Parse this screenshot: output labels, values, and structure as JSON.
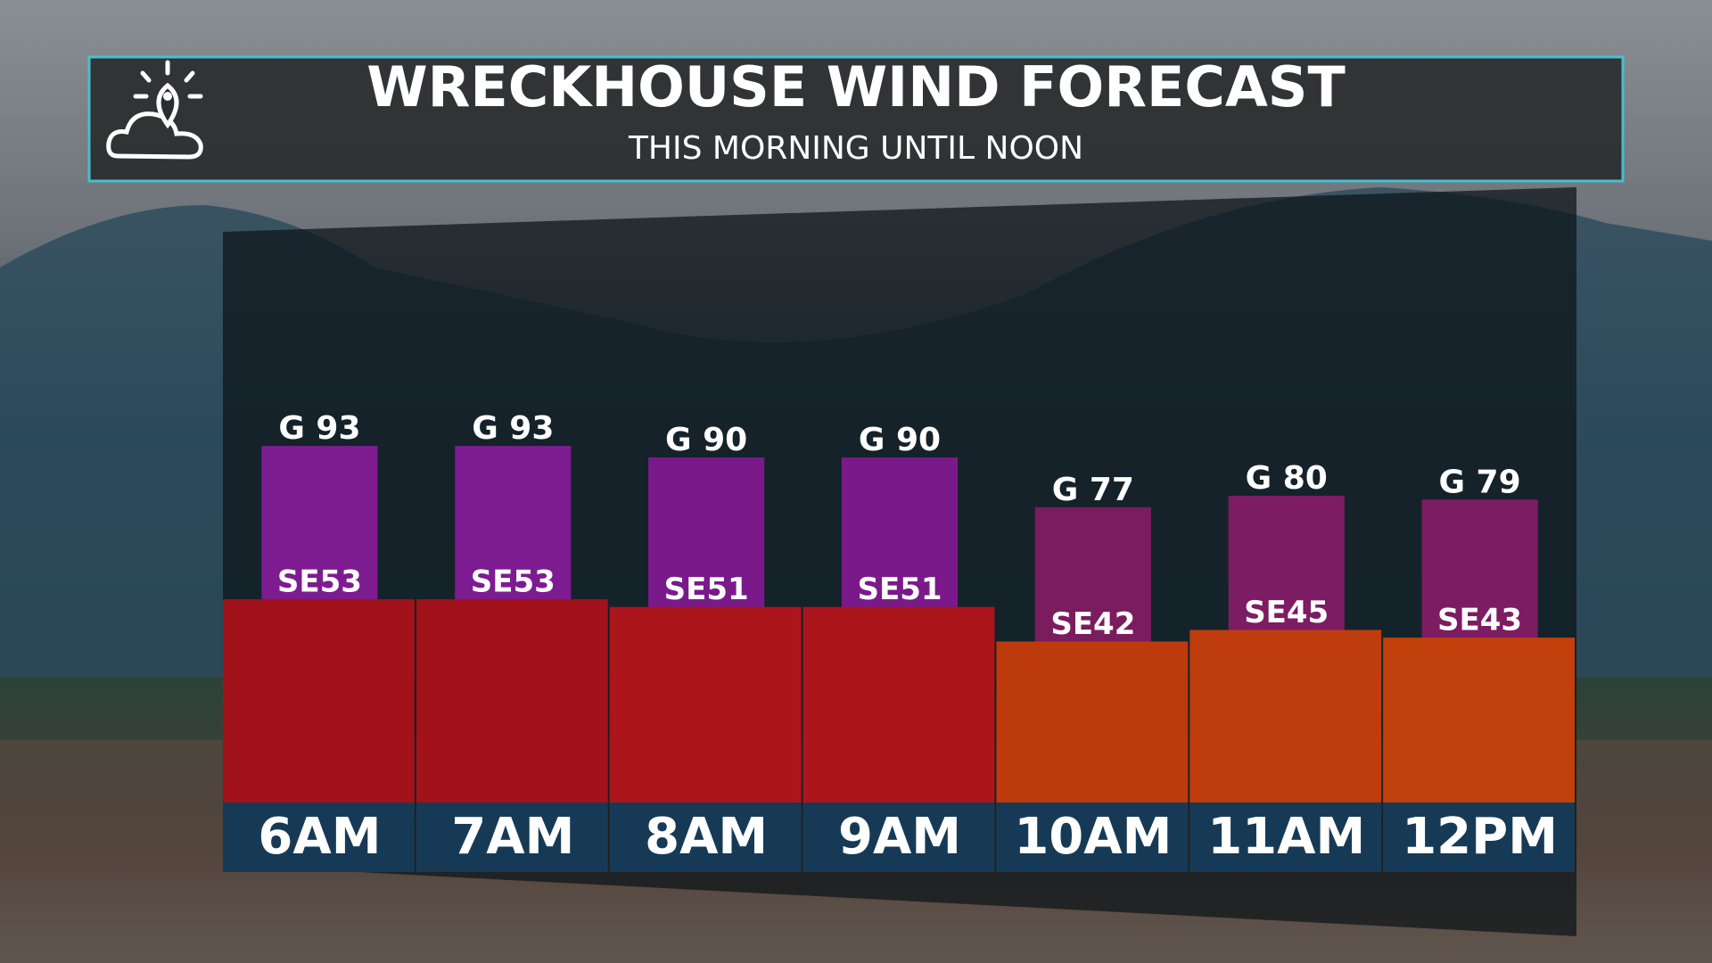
{
  "chart_data": {
    "type": "bar",
    "title": "WRECKHOUSE WIND FORECAST",
    "subtitle": "THIS MORNING UNTIL NOON",
    "categories": [
      "6AM",
      "7AM",
      "8AM",
      "9AM",
      "10AM",
      "11AM",
      "12PM"
    ],
    "series": [
      {
        "values": [
          53,
          53,
          51,
          51,
          42,
          45,
          43
        ],
        "value_labels": [
          "SE53",
          "SE53",
          "SE51",
          "SE51",
          "SE42",
          "SE45",
          "SE43"
        ],
        "colors": [
          "#a1121a",
          "#a1121a",
          "#ad151c",
          "#ad151c",
          "#bc3a0c",
          "#bf3c0c",
          "#c2400c"
        ]
      },
      {
        "values": [
          93,
          93,
          90,
          90,
          77,
          80,
          79
        ],
        "value_labels": [
          "G 93",
          "G 93",
          "G 90",
          "G 90",
          "G 77",
          "G 80",
          "G 79"
        ],
        "colors": [
          "#7d1c90",
          "#7d1c90",
          "#7a1a8a",
          "#7a1a8a",
          "#7a1c5e",
          "#7c1c62",
          "#7c1c62"
        ]
      }
    ]
  }
}
